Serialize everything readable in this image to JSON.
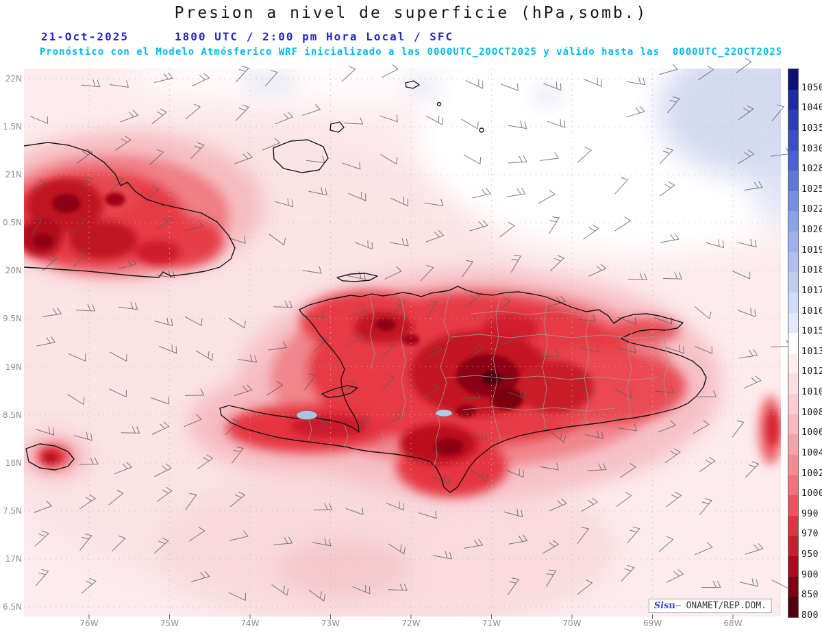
{
  "header": {
    "title": "Presion a nivel de superficie (hPa,somb.)",
    "date": "21-Oct-2025",
    "time_line": "1800 UTC / 2:00 pm Hora Local / SFC",
    "model_line": "Pronóstico con el Modelo Atmósferico WRF inicializado a las 0000UTC_20OCT2025 y válido hasta las  0000UTC_22OCT2025"
  },
  "map": {
    "lat_ticks": [
      "22N",
      "1.5N",
      "21N",
      "0.5N",
      "20N",
      "9.5N",
      "19N",
      "8.5N",
      "18N",
      "7.5N",
      "17N",
      "6.5N"
    ],
    "lon_ticks": [
      "76W",
      "75W",
      "74W",
      "73W",
      "72W",
      "71W",
      "70W",
      "69W",
      "68W"
    ]
  },
  "colorbar": {
    "labels": [
      "1050",
      "1040",
      "1035",
      "1030",
      "1028",
      "1025",
      "1022",
      "1020",
      "1019",
      "1018",
      "1017",
      "1016",
      "1015",
      "1013",
      "1012",
      "1010",
      "1008",
      "1006",
      "1004",
      "1002",
      "1000",
      "990",
      "970",
      "950",
      "900",
      "850",
      "800"
    ],
    "colors": [
      "#0b1271",
      "#1d2d9c",
      "#2c3eb0",
      "#3a50c0",
      "#4a64cd",
      "#5d79d7",
      "#7590e0",
      "#8aa2e6",
      "#9db1ec",
      "#afc0f0",
      "#c1cef4",
      "#d2dbf7",
      "#e3e8fa",
      "#ffffff",
      "#fdeef0",
      "#fbdfe2",
      "#f9cdd1",
      "#f7b9be",
      "#f5a3aa",
      "#f28d94",
      "#ee737b",
      "#e9555e",
      "#e03540",
      "#c71f2d",
      "#a30d1e",
      "#7a0414",
      "#4f000c"
    ]
  },
  "watermark": {
    "prefix": "Sis",
    "pi": "π",
    "suffix": "– ONAMET/REP.DOM."
  },
  "chart_data": {
    "type": "heatmap",
    "title": "Presion a nivel de superficie (hPa,somb.)",
    "variable": "surface pressure (shaded) with wind barbs",
    "units": "hPa",
    "x_axis": {
      "label": "longitude",
      "ticks": [
        "76W",
        "75W",
        "74W",
        "73W",
        "72W",
        "71W",
        "70W",
        "69W",
        "68W"
      ]
    },
    "y_axis": {
      "label": "latitude",
      "ticks": [
        "22N",
        "1.5N",
        "21N",
        "0.5N",
        "20N",
        "9.5N",
        "19N",
        "8.5N",
        "18N",
        "7.5N",
        "17N",
        "6.5N"
      ]
    },
    "colorbar_levels_hPa": [
      1050,
      1040,
      1035,
      1030,
      1028,
      1025,
      1022,
      1020,
      1019,
      1018,
      1017,
      1016,
      1015,
      1013,
      1012,
      1010,
      1008,
      1006,
      1004,
      1002,
      1000,
      990,
      970,
      950,
      900,
      850,
      800
    ],
    "legend_position": "right",
    "grid": "dotted",
    "regions_read_from_shading": [
      {
        "area": "open ocean background",
        "approx_value_hPa": "1008-1013"
      },
      {
        "area": "Atlantic north-east of map (high)",
        "approx_value_hPa": "1013-1020"
      },
      {
        "area": "eastern Cuba interior (terrain lows)",
        "approx_value_hPa": "900-1004"
      },
      {
        "area": "Hispaniola interior / Cordillera Central (terrain lows)",
        "approx_value_hPa": "800-1000"
      },
      {
        "area": "north-east Jamaica tip",
        "approx_value_hPa": "990-1004"
      }
    ],
    "wind_overlay": "station wind barbs on regular grid, predominantly easterly"
  }
}
